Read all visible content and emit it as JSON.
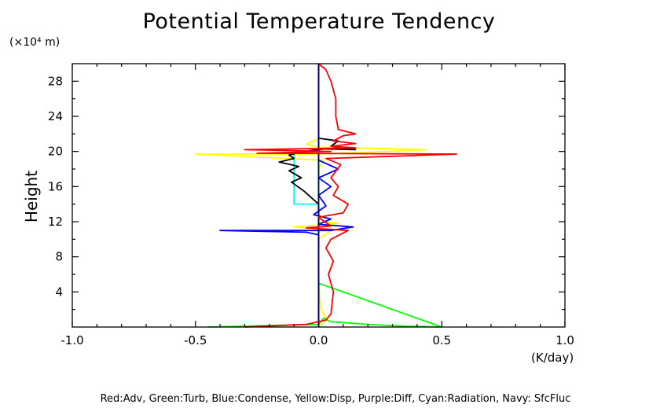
{
  "chart_data": {
    "type": "line",
    "title": "Potential Temperature Tendency",
    "xlabel": "(K/day)",
    "ylabel": "Height",
    "y_unit_label": "(×10⁴ m)",
    "xlim": [
      -1.0,
      1.0
    ],
    "ylim": [
      0,
      30
    ],
    "x_ticks": [
      "-1.0",
      "-0.5",
      "0.0",
      "0.5",
      "1.0"
    ],
    "x_tick_values": [
      -1.0,
      -0.5,
      0.0,
      0.5,
      1.0
    ],
    "y_ticks": [
      "4",
      "8",
      "12",
      "16",
      "20",
      "24",
      "28"
    ],
    "y_tick_values": [
      4,
      8,
      12,
      16,
      20,
      24,
      28
    ],
    "legend_text": "Red:Adv, Green:Turb, Blue:Condense, Yellow:Disp, Purple:Diff, Cyan:Radiation, Navy: SfcFluc",
    "series": [
      {
        "color": "#ffff00",
        "points": [
          [
            0.0,
            0
          ],
          [
            0.02,
            0.5
          ],
          [
            0.03,
            1
          ],
          [
            0.01,
            2
          ],
          [
            0.0,
            5
          ],
          [
            0.0,
            10
          ],
          [
            0.05,
            11
          ],
          [
            -0.1,
            11.4
          ],
          [
            0.08,
            11.8
          ],
          [
            0.0,
            12
          ],
          [
            0.0,
            18
          ],
          [
            0.02,
            19
          ],
          [
            -0.5,
            19.7
          ],
          [
            0.0,
            19.7
          ],
          [
            0.1,
            19.8
          ],
          [
            0.44,
            20.2
          ],
          [
            0.0,
            20.5
          ],
          [
            -0.05,
            20.8
          ],
          [
            0.0,
            21.5
          ],
          [
            0.0,
            30
          ]
        ]
      },
      {
        "color": "#00ff00",
        "points": [
          [
            -0.45,
            0
          ],
          [
            0.0,
            0.3
          ],
          [
            0.02,
            1
          ],
          [
            0.05,
            0.6
          ],
          [
            0.2,
            0.3
          ],
          [
            0.35,
            0.1
          ],
          [
            0.5,
            0
          ],
          [
            0.0,
            5
          ],
          [
            0.0,
            30
          ]
        ]
      },
      {
        "color": "#00ffff",
        "points": [
          [
            0.0,
            0
          ],
          [
            0.0,
            14
          ],
          [
            -0.1,
            14
          ],
          [
            -0.1,
            20
          ],
          [
            -0.05,
            20
          ],
          [
            0.0,
            20
          ],
          [
            0.0,
            30
          ]
        ]
      },
      {
        "color": "#000000",
        "points": [
          [
            0.0,
            0
          ],
          [
            0.0,
            14
          ],
          [
            -0.02,
            14.5
          ],
          [
            -0.06,
            15.5
          ],
          [
            -0.11,
            16.5
          ],
          [
            -0.07,
            17
          ],
          [
            -0.12,
            17.8
          ],
          [
            -0.08,
            18.3
          ],
          [
            -0.16,
            18.8
          ],
          [
            -0.1,
            19.2
          ],
          [
            -0.12,
            19.6
          ],
          [
            -0.06,
            20
          ],
          [
            0.02,
            20.3
          ],
          [
            0.15,
            20.2
          ],
          [
            0.05,
            20.6
          ],
          [
            0.08,
            21.2
          ],
          [
            0.0,
            21.5
          ],
          [
            0.0,
            30
          ]
        ]
      },
      {
        "color": "#0000ff",
        "points": [
          [
            0.0,
            0
          ],
          [
            0.0,
            10.5
          ],
          [
            -0.05,
            10.8
          ],
          [
            -0.4,
            11
          ],
          [
            0.05,
            11
          ],
          [
            0.14,
            11.4
          ],
          [
            0.0,
            11.7
          ],
          [
            0.05,
            12.3
          ],
          [
            -0.02,
            12.8
          ],
          [
            0.03,
            13.8
          ],
          [
            0.0,
            15
          ],
          [
            0.05,
            16
          ],
          [
            0.0,
            17
          ],
          [
            0.08,
            18
          ],
          [
            0.0,
            19
          ],
          [
            0.0,
            30
          ]
        ]
      },
      {
        "color": "#000080",
        "points": [
          [
            0.0,
            0
          ],
          [
            0.0,
            30
          ]
        ]
      },
      {
        "color": "#ff0000",
        "points": [
          [
            -0.3,
            0
          ],
          [
            -0.05,
            0.3
          ],
          [
            0.03,
            0.8
          ],
          [
            0.05,
            1.5
          ],
          [
            0.06,
            4
          ],
          [
            0.04,
            6
          ],
          [
            0.06,
            7.5
          ],
          [
            0.03,
            9
          ],
          [
            0.05,
            10
          ],
          [
            0.12,
            11
          ],
          [
            -0.05,
            11.3
          ],
          [
            0.05,
            11.5
          ],
          [
            0.0,
            12.5
          ],
          [
            0.1,
            13
          ],
          [
            0.12,
            14
          ],
          [
            0.06,
            15
          ],
          [
            0.08,
            16
          ],
          [
            0.05,
            17
          ],
          [
            0.09,
            18.5
          ],
          [
            0.03,
            19.2
          ],
          [
            0.56,
            19.7
          ],
          [
            -0.25,
            19.8
          ],
          [
            0.05,
            20
          ],
          [
            -0.3,
            20.2
          ],
          [
            0.15,
            20.4
          ],
          [
            0.05,
            20.6
          ],
          [
            0.15,
            20.9
          ],
          [
            0.06,
            21.2
          ],
          [
            0.1,
            21.8
          ],
          [
            0.15,
            22
          ],
          [
            0.08,
            22.5
          ],
          [
            0.07,
            24
          ],
          [
            0.07,
            26
          ],
          [
            0.05,
            28
          ],
          [
            0.03,
            29.3
          ],
          [
            0.0,
            30
          ]
        ]
      }
    ]
  }
}
